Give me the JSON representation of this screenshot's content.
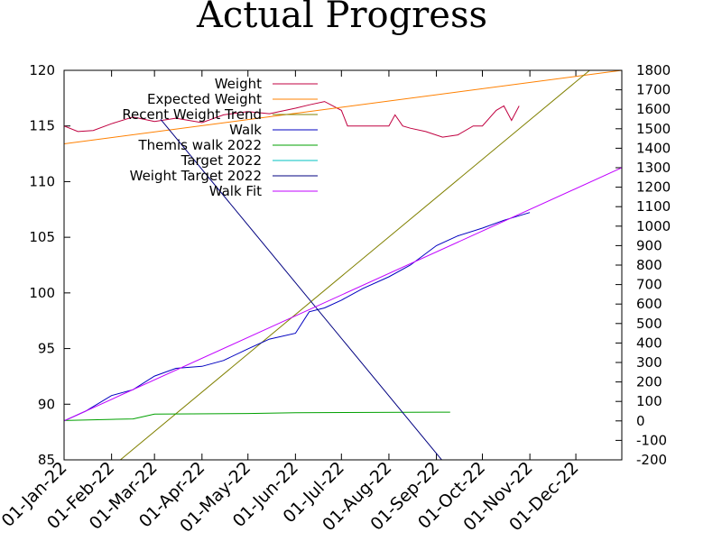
{
  "chart_data": {
    "type": "line",
    "title": "Actual Progress",
    "x_ticks": [
      "01-Jan-22",
      "01-Feb-22",
      "01-Mar-22",
      "01-Apr-22",
      "01-May-22",
      "01-Jun-22",
      "01-Jul-22",
      "01-Aug-22",
      "01-Sep-22",
      "01-Oct-22",
      "01-Nov-22",
      "01-Dec-22"
    ],
    "xlim": [
      "2022-01-01",
      "2022-12-31"
    ],
    "ylim": [
      85,
      120
    ],
    "y_ticks": [
      85,
      90,
      95,
      100,
      105,
      110,
      115,
      120
    ],
    "y2lim": [
      -200,
      1800
    ],
    "y2_ticks": [
      -200,
      -100,
      0,
      100,
      200,
      300,
      400,
      500,
      600,
      700,
      800,
      900,
      1000,
      1100,
      1200,
      1300,
      1400,
      1500,
      1600,
      1700,
      1800
    ],
    "legend_position": "top-left",
    "series": [
      {
        "name": "Weight",
        "axis": "y",
        "color": "#c00040",
        "x": [
          "2022-01-01",
          "2022-01-10",
          "2022-01-20",
          "2022-02-01",
          "2022-02-15",
          "2022-03-01",
          "2022-03-15",
          "2022-04-01",
          "2022-04-15",
          "2022-05-01",
          "2022-05-15",
          "2022-06-01",
          "2022-06-10",
          "2022-06-20",
          "2022-07-01",
          "2022-07-05",
          "2022-07-20",
          "2022-08-01",
          "2022-08-05",
          "2022-08-10",
          "2022-08-15",
          "2022-08-25",
          "2022-09-05",
          "2022-09-15",
          "2022-09-25",
          "2022-10-01",
          "2022-10-10",
          "2022-10-15",
          "2022-10-20",
          "2022-10-25"
        ],
        "values": [
          115.0,
          114.5,
          114.6,
          115.2,
          115.8,
          115.4,
          115.7,
          115.3,
          116.0,
          116.3,
          116.1,
          116.6,
          116.9,
          117.2,
          116.4,
          115.0,
          115.0,
          115.0,
          116.0,
          115.0,
          114.8,
          114.5,
          114.0,
          114.2,
          115.0,
          115.0,
          116.4,
          116.8,
          115.5,
          116.8
        ]
      },
      {
        "name": "Expected Weight",
        "axis": "y",
        "color": "#ff8000",
        "x": [
          "2022-01-01",
          "2022-12-31"
        ],
        "values": [
          113.4,
          120.0
        ]
      },
      {
        "name": "Recent Weight Trend",
        "axis": "y",
        "color": "#808000",
        "x": [
          "2022-01-01",
          "2022-12-31"
        ],
        "values": [
          80.8,
          122.4
        ]
      },
      {
        "name": "Walk",
        "axis": "y2",
        "color": "#0000c0",
        "x": [
          "2022-01-01",
          "2022-01-15",
          "2022-02-01",
          "2022-02-15",
          "2022-03-01",
          "2022-03-15",
          "2022-04-01",
          "2022-04-15",
          "2022-05-01",
          "2022-05-15",
          "2022-06-01",
          "2022-06-10",
          "2022-06-20",
          "2022-07-01",
          "2022-07-15",
          "2022-08-01",
          "2022-08-15",
          "2022-09-01",
          "2022-09-15",
          "2022-10-01",
          "2022-10-15",
          "2022-11-01"
        ],
        "values": [
          0,
          50,
          130,
          160,
          230,
          270,
          280,
          310,
          370,
          420,
          450,
          560,
          580,
          620,
          680,
          740,
          800,
          900,
          950,
          990,
          1030,
          1070
        ]
      },
      {
        "name": "Themis walk 2022",
        "axis": "y2",
        "color": "#00a000",
        "x": [
          "2022-01-01",
          "2022-02-01",
          "2022-02-15",
          "2022-03-01",
          "2022-05-01",
          "2022-06-01",
          "2022-09-01",
          "2022-09-10"
        ],
        "values": [
          2,
          8,
          10,
          35,
          38,
          42,
          45,
          45
        ]
      },
      {
        "name": "Target 2022",
        "axis": "y2",
        "color": "#00c0c0",
        "x": [],
        "values": []
      },
      {
        "name": "Weight Target 2022",
        "axis": "y",
        "color": "#000080",
        "x": [
          "2022-03-05",
          "2022-09-05"
        ],
        "values": [
          115.6,
          84.9
        ]
      },
      {
        "name": "Walk Fit",
        "axis": "y2",
        "color": "#c000ff",
        "x": [
          "2022-01-01",
          "2022-12-31"
        ],
        "values": [
          0,
          1300
        ]
      }
    ]
  }
}
